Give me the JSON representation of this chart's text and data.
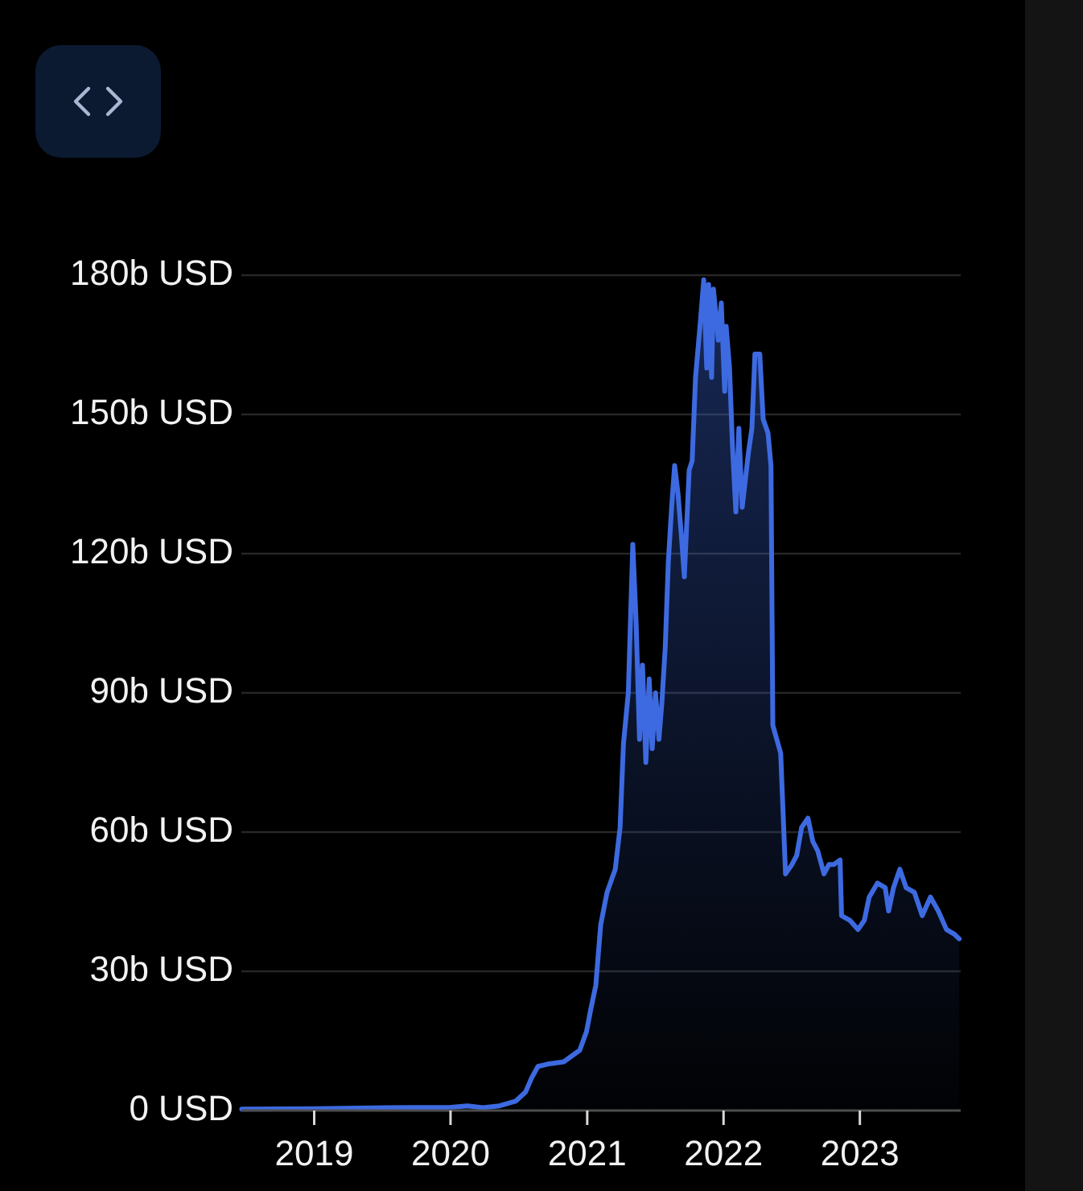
{
  "chart_data": {
    "type": "area",
    "color": "#3d6ae0",
    "x": [
      "2018-06-21",
      "2019-01-01",
      "2019-07-13",
      "2020-01-02",
      "2020-02-15",
      "2020-03-28",
      "2020-05-11",
      "2020-06-23",
      "2020-07-20",
      "2020-08-05",
      "2020-08-22",
      "2020-09-17",
      "2020-10-30",
      "2020-11-25",
      "2020-12-12",
      "2020-12-30",
      "2021-01-11",
      "2021-01-24",
      "2021-02-06",
      "2021-02-23",
      "2021-03-17",
      "2021-03-30",
      "2021-04-08",
      "2021-04-21",
      "2021-05-03",
      "2021-05-12",
      "2021-05-21",
      "2021-05-29",
      "2021-06-07",
      "2021-06-16",
      "2021-06-24",
      "2021-07-03",
      "2021-07-12",
      "2021-07-20",
      "2021-07-29",
      "2021-08-06",
      "2021-08-15",
      "2021-08-23",
      "2021-09-01",
      "2021-09-10",
      "2021-09-18",
      "2021-10-01",
      "2021-10-09",
      "2021-10-18",
      "2021-10-31",
      "2021-11-09",
      "2021-11-17",
      "2021-11-22",
      "2021-11-30",
      "2021-12-05",
      "2021-12-18",
      "2021-12-26",
      "2022-01-04",
      "2022-01-08",
      "2022-01-17",
      "2022-01-25",
      "2022-02-03",
      "2022-02-11",
      "2022-02-20",
      "2022-03-09",
      "2022-03-18",
      "2022-03-26",
      "2022-04-08",
      "2022-04-17",
      "2022-04-30",
      "2022-05-08",
      "2022-05-13",
      "2022-06-03",
      "2022-06-16",
      "2022-07-03",
      "2022-07-16",
      "2022-07-29",
      "2022-08-15",
      "2022-08-28",
      "2022-09-10",
      "2022-09-27",
      "2022-10-10",
      "2022-10-23",
      "2022-11-09",
      "2022-11-13",
      "2022-12-05",
      "2022-12-27",
      "2023-01-13",
      "2023-01-26",
      "2023-02-17",
      "2023-03-10",
      "2023-03-19",
      "2023-04-01",
      "2023-04-18",
      "2023-05-05",
      "2023-05-27",
      "2023-06-17",
      "2023-07-09",
      "2023-07-30",
      "2023-08-21",
      "2023-09-11",
      "2023-09-24"
    ],
    "values": [
      0.3,
      0.4,
      0.6,
      0.7,
      1,
      0.6,
      1,
      2,
      4,
      7,
      9.5,
      10,
      10.5,
      12,
      13,
      17,
      22,
      27,
      40,
      47,
      52,
      61,
      79,
      90,
      122,
      105,
      80,
      96,
      75,
      93,
      78,
      90,
      80,
      88,
      100,
      118,
      130,
      139,
      133,
      124,
      115,
      138,
      140,
      158,
      170,
      179,
      160,
      178,
      158,
      177,
      166,
      174,
      155,
      169,
      160,
      143,
      129,
      147,
      130,
      142,
      147,
      163,
      163,
      149,
      146,
      139,
      83,
      77,
      51,
      53,
      55,
      61,
      63,
      58,
      56,
      51,
      53,
      53,
      54,
      42,
      41,
      39,
      41,
      46,
      49,
      48,
      43,
      48,
      52,
      48,
      47,
      42,
      46,
      43,
      39,
      38,
      37
    ],
    "xlim": [
      "2018-06-20",
      "2023-09-28"
    ],
    "xticks": [
      "2019",
      "2020",
      "2021",
      "2022",
      "2023"
    ],
    "ylim": [
      0,
      180
    ],
    "yticks": [
      {
        "value": 0,
        "label": "0 USD"
      },
      {
        "value": 30,
        "label": "30b USD"
      },
      {
        "value": 60,
        "label": "60b USD"
      },
      {
        "value": 90,
        "label": "90b USD"
      },
      {
        "value": 120,
        "label": "120b USD"
      },
      {
        "value": 150,
        "label": "150b USD"
      },
      {
        "value": 180,
        "label": "180b USD"
      }
    ],
    "grid": "y"
  }
}
